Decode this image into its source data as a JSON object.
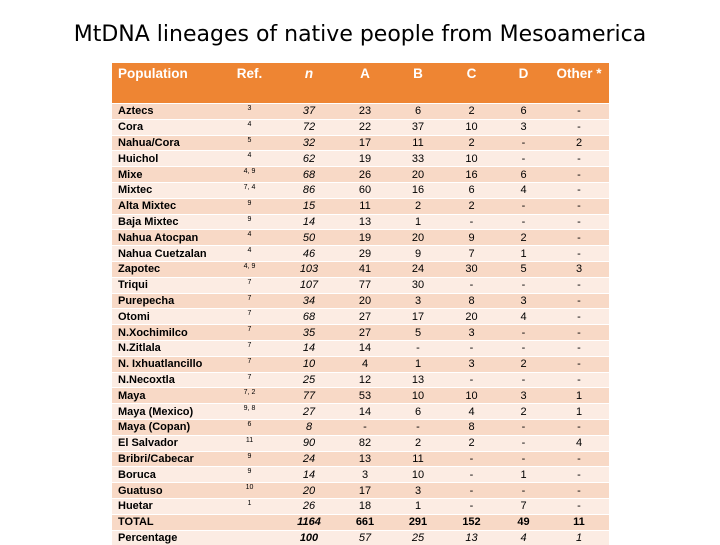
{
  "title": "MtDNA lineages of native people from Mesoamerica",
  "headers": [
    "Population",
    "Ref.",
    "n",
    "A",
    "B",
    "C",
    "D",
    "Other *"
  ],
  "rows": [
    [
      "Aztecs",
      "3",
      "37",
      "23",
      "6",
      "2",
      "6",
      "-"
    ],
    [
      "Cora",
      "4",
      "72",
      "22",
      "37",
      "10",
      "3",
      "-"
    ],
    [
      "Nahua/Cora",
      "5",
      "32",
      "17",
      "11",
      "2",
      "-",
      "2"
    ],
    [
      "Huichol",
      "4",
      "62",
      "19",
      "33",
      "10",
      "-",
      "-"
    ],
    [
      "Mixe",
      "4, 9",
      "68",
      "26",
      "20",
      "16",
      "6",
      "-"
    ],
    [
      "Mixtec",
      "7, 4",
      "86",
      "60",
      "16",
      "6",
      "4",
      "-"
    ],
    [
      "Alta Mixtec",
      "9",
      "15",
      "11",
      "2",
      "2",
      "-",
      "-"
    ],
    [
      "Baja Mixtec",
      "9",
      "14",
      "13",
      "1",
      "-",
      "-",
      "-"
    ],
    [
      "Nahua Atocpan",
      "4",
      "50",
      "19",
      "20",
      "9",
      "2",
      "-"
    ],
    [
      "Nahua Cuetzalan",
      "4",
      "46",
      "29",
      "9",
      "7",
      "1",
      "-"
    ],
    [
      "Zapotec",
      "4, 9",
      "103",
      "41",
      "24",
      "30",
      "5",
      "3"
    ],
    [
      "Triqui",
      "7",
      "107",
      "77",
      "30",
      "-",
      "-",
      "-"
    ],
    [
      "Purepecha",
      "7",
      "34",
      "20",
      "3",
      "8",
      "3",
      "-"
    ],
    [
      "Otomi",
      "7",
      "68",
      "27",
      "17",
      "20",
      "4",
      "-"
    ],
    [
      "N.Xochimilco",
      "7",
      "35",
      "27",
      "5",
      "3",
      "-",
      "-"
    ],
    [
      "N.Zitlala",
      "7",
      "14",
      "14",
      "-",
      "-",
      "-",
      "-"
    ],
    [
      "N. Ixhuatlancillo",
      "7",
      "10",
      "4",
      "1",
      "3",
      "2",
      "-"
    ],
    [
      "N.Necoxtla",
      "7",
      "25",
      "12",
      "13",
      "-",
      "-",
      "-"
    ],
    [
      "Maya",
      "7, 2",
      "77",
      "53",
      "10",
      "10",
      "3",
      "1"
    ],
    [
      "Maya (Mexico)",
      "9, 8",
      "27",
      "14",
      "6",
      "4",
      "2",
      "1"
    ],
    [
      "Maya (Copan)",
      "6",
      "8",
      "-",
      "-",
      "8",
      "-",
      "-"
    ],
    [
      "El Salvador",
      "11",
      "90",
      "82",
      "2",
      "2",
      "-",
      "4"
    ],
    [
      "Bribri/Cabecar",
      "9",
      "24",
      "13",
      "11",
      "-",
      "-",
      "-"
    ],
    [
      "Boruca",
      "9",
      "14",
      "3",
      "10",
      "-",
      "1",
      "-"
    ],
    [
      "Guatuso",
      "10",
      "20",
      "17",
      "3",
      "-",
      "-",
      "-"
    ],
    [
      "Huetar",
      "1",
      "26",
      "18",
      "1",
      "-",
      "7",
      "-"
    ]
  ],
  "total": [
    "TOTAL",
    "",
    "1164",
    "661",
    "291",
    "152",
    "49",
    "11"
  ],
  "percentage": [
    "Percentage",
    "",
    "100",
    "57",
    "25",
    "13",
    "4",
    "1"
  ],
  "colors": {
    "header": "#ee8533",
    "row_dark": "#f8d9c6",
    "row_light": "#fcece3"
  }
}
